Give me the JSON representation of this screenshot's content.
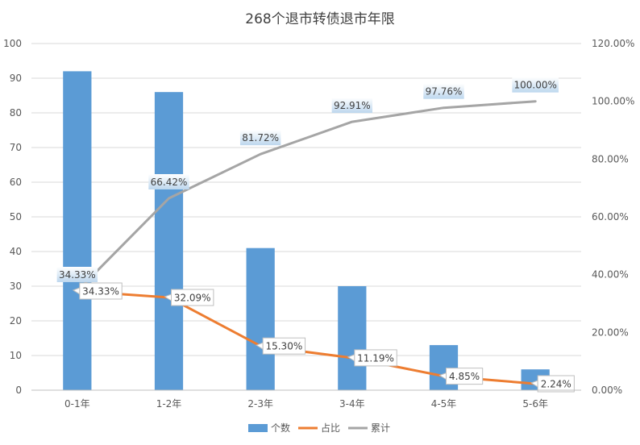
{
  "chart_data": {
    "type": "bar",
    "title": "268个退市转债退市年限",
    "categories": [
      "0-1年",
      "1-2年",
      "2-3年",
      "3-4年",
      "4-5年",
      "5-6年"
    ],
    "series": [
      {
        "name": "个数",
        "type": "bar",
        "axis": "left",
        "color": "#5b9bd5",
        "values": [
          92,
          86,
          41,
          30,
          13,
          6
        ]
      },
      {
        "name": "占比",
        "type": "line",
        "axis": "right",
        "color": "#ed7d31",
        "values": [
          34.33,
          32.09,
          15.3,
          11.19,
          4.85,
          2.24
        ],
        "labels": [
          "34.33%",
          "32.09%",
          "15.30%",
          "11.19%",
          "4.85%",
          "2.24%"
        ]
      },
      {
        "name": "累计",
        "type": "line",
        "axis": "right",
        "color": "#a5a5a5",
        "values": [
          34.33,
          66.42,
          81.72,
          92.91,
          97.76,
          100.0
        ],
        "labels": [
          "34.33%",
          "66.42%",
          "81.72%",
          "92.91%",
          "97.76%",
          "100.00%"
        ]
      }
    ],
    "y_left": {
      "min": 0,
      "max": 100,
      "ticks": [
        0,
        10,
        20,
        30,
        40,
        50,
        60,
        70,
        80,
        90,
        100
      ],
      "tick_labels": [
        "0",
        "10",
        "20",
        "30",
        "40",
        "50",
        "60",
        "70",
        "80",
        "90",
        "100"
      ]
    },
    "y_right": {
      "min": 0,
      "max": 120,
      "ticks": [
        0,
        20,
        40,
        60,
        80,
        100,
        120
      ],
      "tick_labels": [
        "0.00%",
        "20.00%",
        "40.00%",
        "60.00%",
        "80.00%",
        "100.00%",
        "120.00%"
      ]
    },
    "grid": true,
    "legend": "bottom"
  }
}
